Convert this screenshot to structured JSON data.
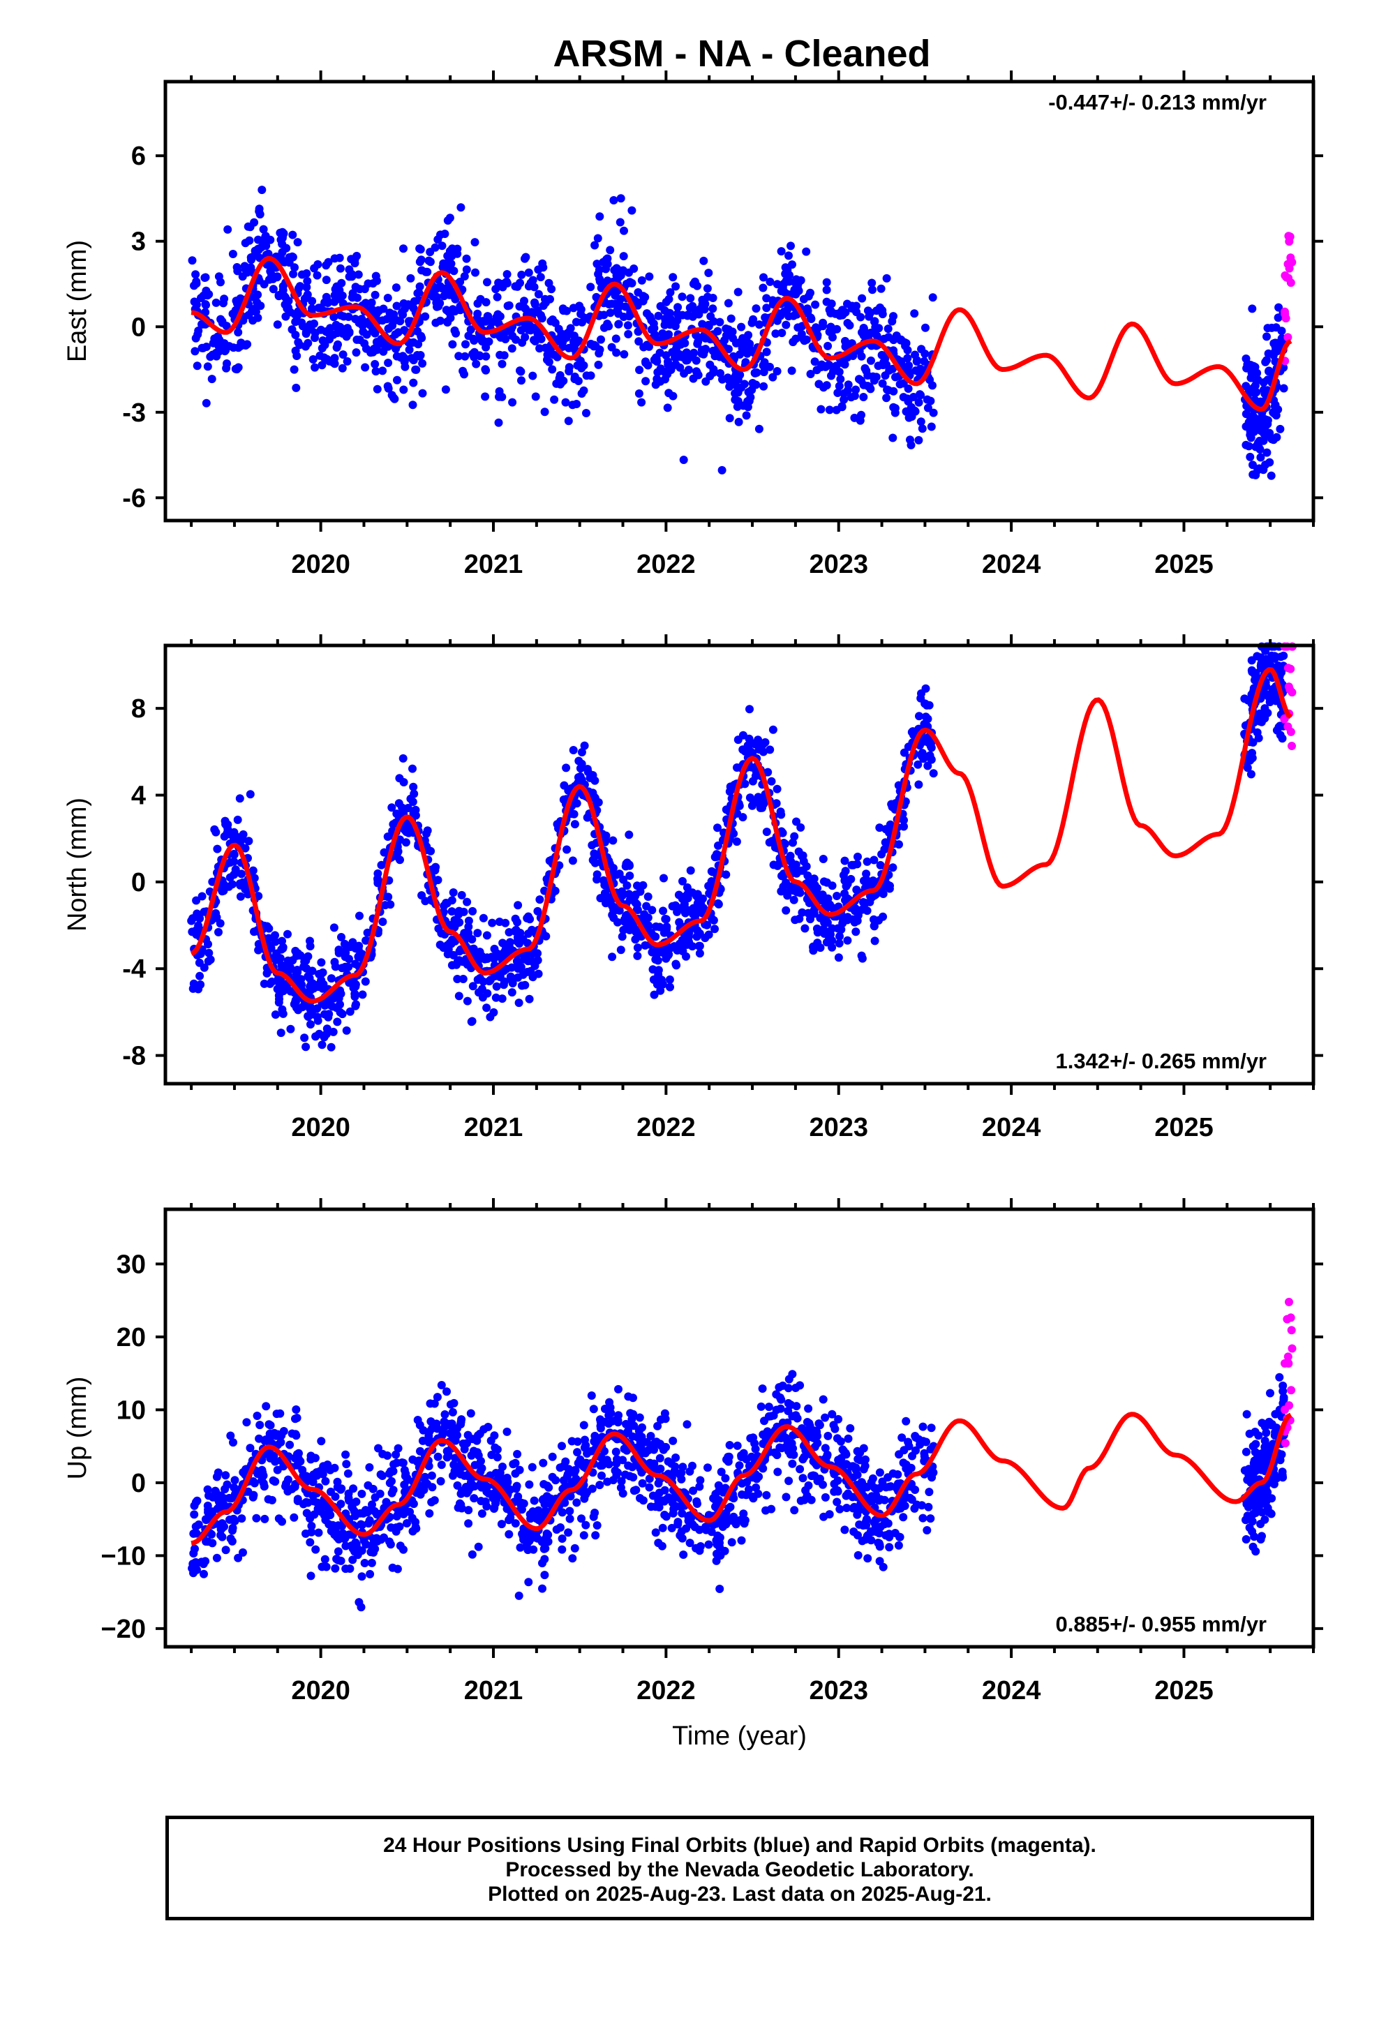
{
  "title": "ARSM  - NA - Cleaned",
  "colors": {
    "final": "#0000ff",
    "rapid": "#ff00ff",
    "model": "#ff0000",
    "axis": "#000000"
  },
  "chart_data": [
    {
      "type": "scatter",
      "ylabel": "East (mm)",
      "xlabel": "",
      "xlim": [
        2019.1,
        2025.75
      ],
      "ylim": [
        -6.8,
        8.6
      ],
      "yticks": [
        "-6",
        "-3",
        "0",
        "3",
        "6"
      ],
      "xticks": [
        "2020",
        "2021",
        "2022",
        "2023",
        "2024",
        "2025"
      ],
      "rate": "-0.447+/- 0.213 mm/yr",
      "rate_position": "top-right",
      "series": [
        {
          "name": "final",
          "x_range": [
            2019.25,
            2023.55
          ],
          "gap": [
            2023.55,
            2025.35
          ],
          "x_range_2": [
            2025.35,
            2025.58
          ]
        },
        {
          "name": "rapid",
          "x_range": [
            2025.58,
            2025.63
          ]
        },
        {
          "name": "model",
          "x": [
            2019.25,
            2019.45,
            2019.7,
            2019.95,
            2020.2,
            2020.45,
            2020.7,
            2020.95,
            2021.2,
            2021.45,
            2021.7,
            2021.95,
            2022.2,
            2022.45,
            2022.7,
            2022.95,
            2023.2,
            2023.45,
            2023.7,
            2023.95,
            2024.2,
            2024.45,
            2024.7,
            2024.95,
            2025.2,
            2025.45,
            2025.62
          ],
          "y": [
            0.5,
            -0.2,
            2.4,
            0.4,
            0.7,
            -0.6,
            1.9,
            -0.2,
            0.3,
            -1.1,
            1.5,
            -0.6,
            -0.1,
            -1.5,
            1.0,
            -1.1,
            -0.5,
            -2.0,
            0.6,
            -1.5,
            -1.0,
            -2.5,
            0.1,
            -2.0,
            -1.4,
            -2.9,
            -0.5
          ]
        }
      ]
    },
    {
      "type": "scatter",
      "ylabel": "North (mm)",
      "xlabel": "",
      "xlim": [
        2019.1,
        2025.75
      ],
      "ylim": [
        -9.3,
        10.9
      ],
      "yticks": [
        "-8",
        "-4",
        "0",
        "4",
        "8"
      ],
      "xticks": [
        "2020",
        "2021",
        "2022",
        "2023",
        "2024",
        "2025"
      ],
      "rate": "1.342+/- 0.265 mm/yr",
      "rate_position": "bottom-right",
      "series": [
        {
          "name": "final",
          "x_range": [
            2019.25,
            2023.55
          ],
          "x_range_2": [
            2025.35,
            2025.58
          ]
        },
        {
          "name": "rapid",
          "x_range": [
            2025.58,
            2025.63
          ]
        },
        {
          "name": "model",
          "x": [
            2019.25,
            2019.5,
            2019.75,
            2019.95,
            2020.2,
            2020.5,
            2020.75,
            2020.95,
            2021.2,
            2021.5,
            2021.75,
            2021.95,
            2022.2,
            2022.5,
            2022.75,
            2022.95,
            2023.2,
            2023.5,
            2023.7,
            2023.95,
            2024.2,
            2024.5,
            2024.75,
            2024.95,
            2025.2,
            2025.5,
            2025.62
          ],
          "y": [
            -3.3,
            1.7,
            -4.2,
            -5.5,
            -4.3,
            3.0,
            -2.3,
            -4.2,
            -3.1,
            4.4,
            -1.1,
            -2.9,
            -1.8,
            5.7,
            0.0,
            -1.5,
            -0.4,
            7.0,
            5.0,
            -0.2,
            0.8,
            8.4,
            2.6,
            1.2,
            2.2,
            9.8,
            7.6
          ]
        }
      ]
    },
    {
      "type": "scatter",
      "ylabel": "Up (mm)",
      "xlabel": "Time (year)",
      "xlim": [
        2019.1,
        2025.75
      ],
      "ylim": [
        -22.5,
        37.5
      ],
      "yticks": [
        "−20",
        "−10",
        "0",
        "10",
        "20",
        "30"
      ],
      "xticks": [
        "2020",
        "2021",
        "2022",
        "2023",
        "2024",
        "2025"
      ],
      "rate": "0.885+/- 0.955 mm/yr",
      "rate_position": "bottom-right",
      "series": [
        {
          "name": "final",
          "x_range": [
            2019.25,
            2023.55
          ],
          "x_range_2": [
            2025.35,
            2025.58
          ]
        },
        {
          "name": "rapid",
          "x_range": [
            2025.58,
            2025.63
          ]
        },
        {
          "name": "model",
          "x": [
            2019.25,
            2019.45,
            2019.7,
            2019.95,
            2020.25,
            2020.45,
            2020.7,
            2020.95,
            2021.25,
            2021.45,
            2021.7,
            2021.95,
            2022.25,
            2022.45,
            2022.7,
            2022.95,
            2023.25,
            2023.45,
            2023.7,
            2023.95,
            2024.3,
            2024.45,
            2024.7,
            2024.95,
            2025.3,
            2025.45,
            2025.62
          ],
          "y": [
            -8.3,
            -4.0,
            4.9,
            -0.9,
            -7.1,
            -3.0,
            5.8,
            0.5,
            -6.3,
            -1.0,
            6.7,
            1.0,
            -5.2,
            1.0,
            7.7,
            2.2,
            -4.5,
            1.2,
            8.5,
            3.0,
            -3.5,
            2.0,
            9.4,
            3.8,
            -2.6,
            0.0,
            9.3
          ]
        }
      ]
    }
  ],
  "caption": {
    "line1": "24 Hour Positions Using Final Orbits (blue) and Rapid Orbits (magenta).",
    "line2": "Processed by the Nevada Geodetic Laboratory.",
    "line3": "Plotted on 2025-Aug-23. Last data on 2025-Aug-21."
  }
}
